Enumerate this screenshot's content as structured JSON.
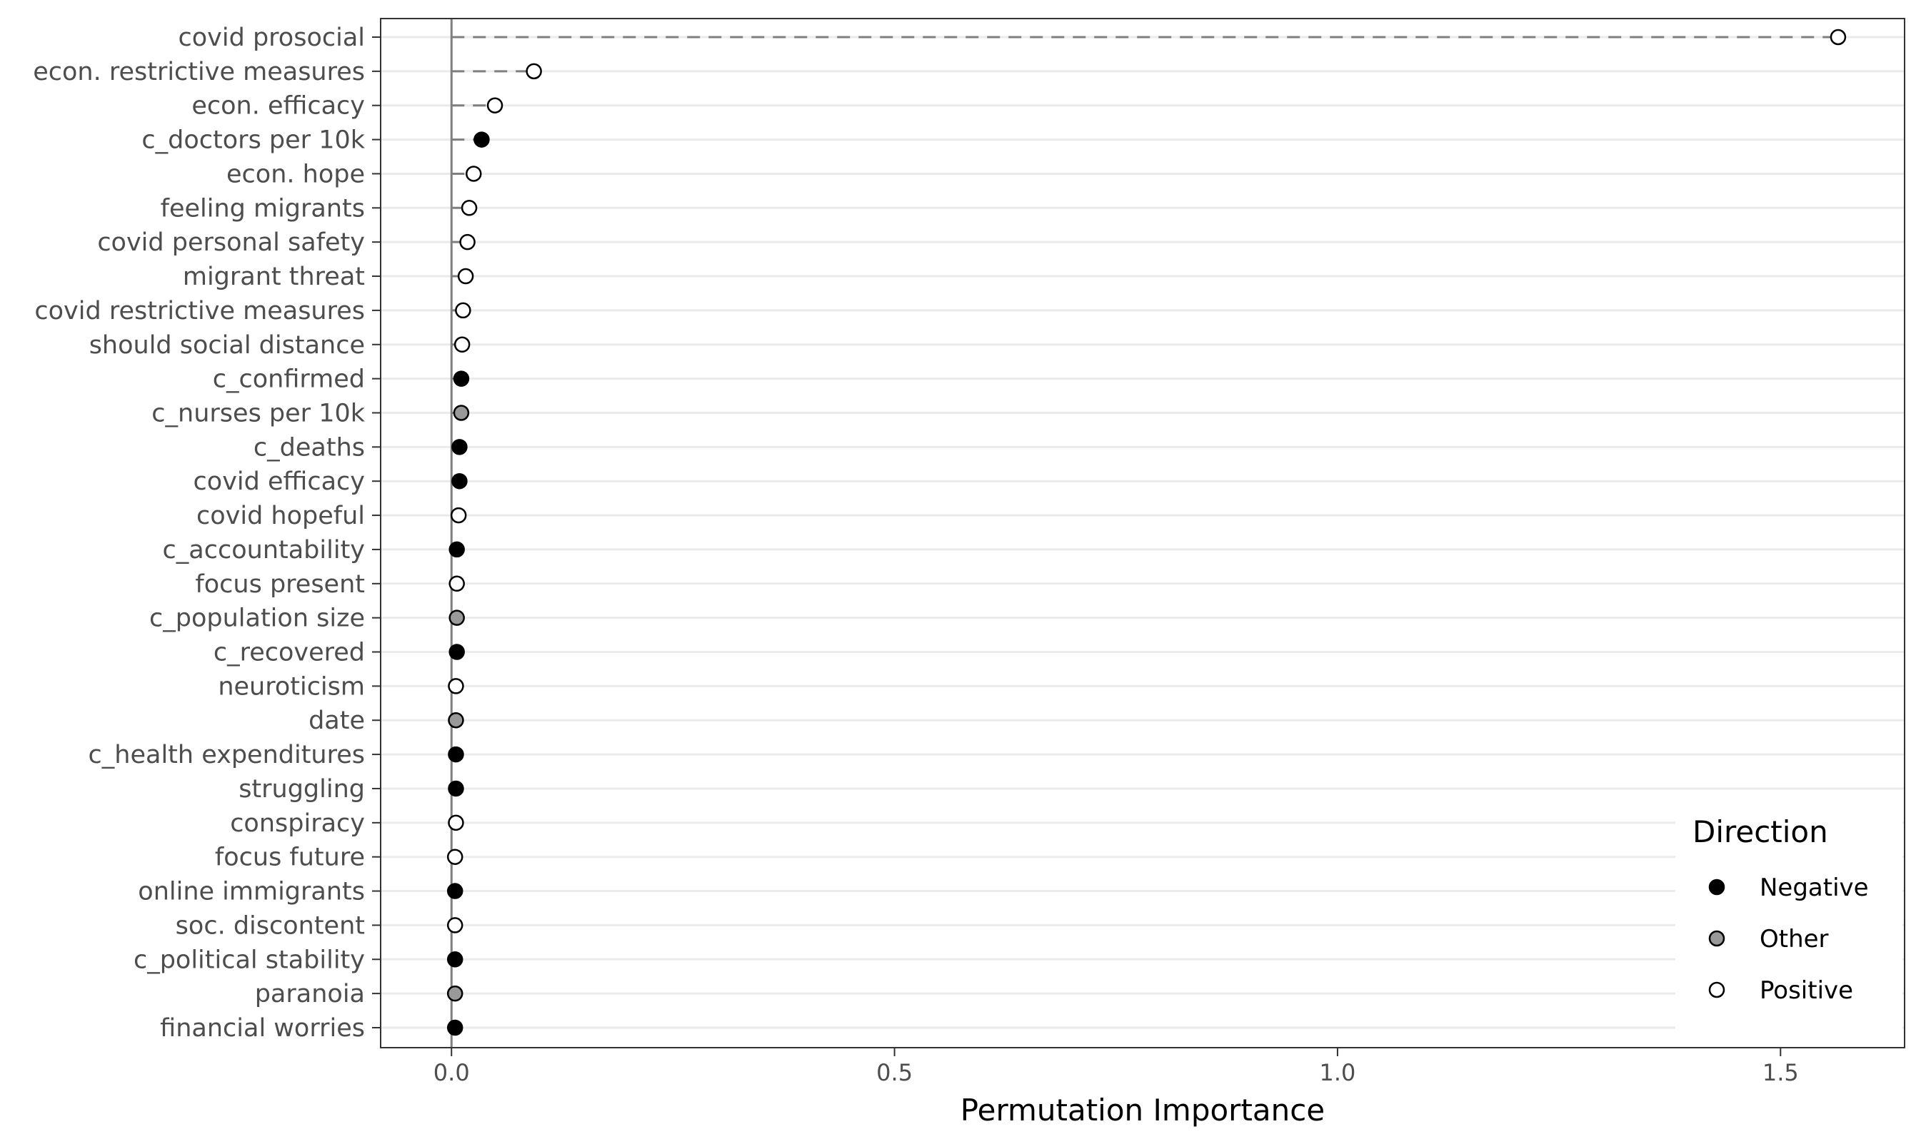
{
  "chart_data": {
    "type": "scatter",
    "subtype": "lollipop",
    "xlabel": "Permutation Importance",
    "ylabel": "",
    "xlim": [
      -0.08,
      1.64
    ],
    "xticks": [
      0.0,
      0.5,
      1.0,
      1.5
    ],
    "xtick_labels": [
      "0.0",
      "0.5",
      "1.0",
      "1.5"
    ],
    "grid": "horizontal major lines",
    "legend": {
      "title": "Direction",
      "position": "bottom-right",
      "entries": [
        {
          "label": "Negative",
          "color": "#000000"
        },
        {
          "label": "Other",
          "color": "#999999"
        },
        {
          "label": "Positive",
          "color": "#ffffff"
        }
      ]
    },
    "points": [
      {
        "label": "covid prosocial",
        "value": 1.565,
        "direction": "Positive"
      },
      {
        "label": "econ. restrictive measures",
        "value": 0.093,
        "direction": "Positive"
      },
      {
        "label": "econ. efficacy",
        "value": 0.049,
        "direction": "Positive"
      },
      {
        "label": "c_doctors per 10k",
        "value": 0.034,
        "direction": "Negative"
      },
      {
        "label": "econ. hope",
        "value": 0.025,
        "direction": "Positive"
      },
      {
        "label": "feeling migrants",
        "value": 0.02,
        "direction": "Positive"
      },
      {
        "label": "covid personal safety",
        "value": 0.018,
        "direction": "Positive"
      },
      {
        "label": "migrant threat",
        "value": 0.016,
        "direction": "Positive"
      },
      {
        "label": "covid restrictive measures",
        "value": 0.013,
        "direction": "Positive"
      },
      {
        "label": "should social distance",
        "value": 0.012,
        "direction": "Positive"
      },
      {
        "label": "c_confirmed",
        "value": 0.011,
        "direction": "Negative"
      },
      {
        "label": "c_nurses per 10k",
        "value": 0.011,
        "direction": "Other"
      },
      {
        "label": "c_deaths",
        "value": 0.009,
        "direction": "Negative"
      },
      {
        "label": "covid efficacy",
        "value": 0.009,
        "direction": "Negative"
      },
      {
        "label": "covid hopeful",
        "value": 0.008,
        "direction": "Positive"
      },
      {
        "label": "c_accountability",
        "value": 0.006,
        "direction": "Negative"
      },
      {
        "label": "focus present",
        "value": 0.006,
        "direction": "Positive"
      },
      {
        "label": "c_population size",
        "value": 0.006,
        "direction": "Other"
      },
      {
        "label": "c_recovered",
        "value": 0.006,
        "direction": "Negative"
      },
      {
        "label": "neuroticism",
        "value": 0.005,
        "direction": "Positive"
      },
      {
        "label": "date",
        "value": 0.005,
        "direction": "Other"
      },
      {
        "label": "c_health expenditures",
        "value": 0.005,
        "direction": "Negative"
      },
      {
        "label": "struggling",
        "value": 0.005,
        "direction": "Negative"
      },
      {
        "label": "conspiracy",
        "value": 0.005,
        "direction": "Positive"
      },
      {
        "label": "focus future",
        "value": 0.004,
        "direction": "Positive"
      },
      {
        "label": "online immigrants",
        "value": 0.004,
        "direction": "Negative"
      },
      {
        "label": "soc. discontent",
        "value": 0.004,
        "direction": "Positive"
      },
      {
        "label": "c_political stability",
        "value": 0.004,
        "direction": "Negative"
      },
      {
        "label": "paranoia",
        "value": 0.004,
        "direction": "Other"
      },
      {
        "label": "financial worries",
        "value": 0.004,
        "direction": "Negative"
      }
    ]
  }
}
